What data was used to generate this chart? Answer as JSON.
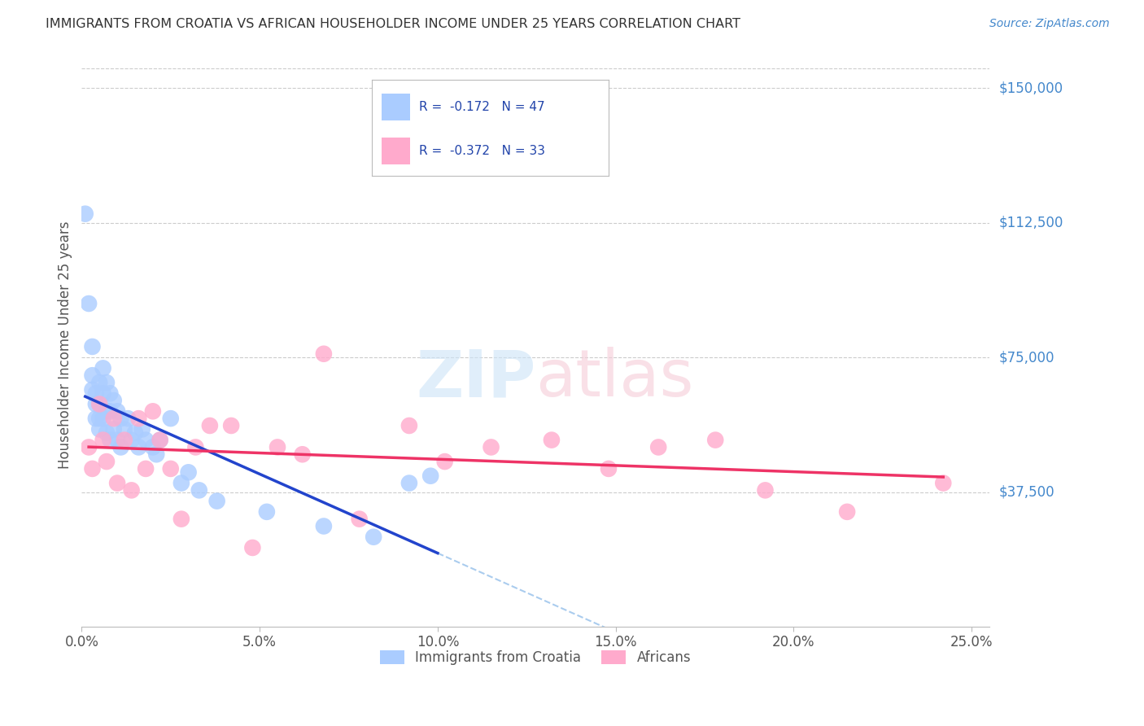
{
  "title": "IMMIGRANTS FROM CROATIA VS AFRICAN HOUSEHOLDER INCOME UNDER 25 YEARS CORRELATION CHART",
  "source": "Source: ZipAtlas.com",
  "ylabel": "Householder Income Under 25 years",
  "xlabel_ticks": [
    "0.0%",
    "5.0%",
    "10.0%",
    "15.0%",
    "20.0%",
    "25.0%"
  ],
  "xlabel_vals": [
    0.0,
    0.05,
    0.1,
    0.15,
    0.2,
    0.25
  ],
  "ylabel_ticks": [
    "$37,500",
    "$75,000",
    "$112,500",
    "$150,000"
  ],
  "ylabel_vals": [
    37500,
    75000,
    112500,
    150000
  ],
  "xlim": [
    0.0,
    0.255
  ],
  "ylim": [
    0,
    157000
  ],
  "croatia_R": "-0.172",
  "croatia_N": "47",
  "african_R": "-0.372",
  "african_N": "33",
  "background_color": "#ffffff",
  "grid_color": "#cccccc",
  "title_color": "#333333",
  "source_color": "#4488cc",
  "ylabel_color": "#555555",
  "yaxis_tick_color": "#4488cc",
  "legend_text_color": "#2244aa",
  "croatia_color": "#aaccff",
  "african_color": "#ffaacc",
  "croatia_line_color": "#2244cc",
  "african_line_color": "#ee3366",
  "dashed_line_color": "#aaccee",
  "croatia_x": [
    0.001,
    0.002,
    0.003,
    0.003,
    0.003,
    0.004,
    0.004,
    0.004,
    0.005,
    0.005,
    0.005,
    0.005,
    0.006,
    0.006,
    0.006,
    0.007,
    0.007,
    0.007,
    0.008,
    0.008,
    0.008,
    0.009,
    0.009,
    0.01,
    0.01,
    0.011,
    0.011,
    0.012,
    0.013,
    0.014,
    0.015,
    0.016,
    0.017,
    0.018,
    0.02,
    0.021,
    0.022,
    0.025,
    0.028,
    0.03,
    0.033,
    0.038,
    0.052,
    0.068,
    0.082,
    0.092,
    0.098
  ],
  "croatia_y": [
    115000,
    90000,
    78000,
    70000,
    66000,
    65000,
    62000,
    58000,
    68000,
    62000,
    58000,
    55000,
    72000,
    65000,
    58000,
    68000,
    60000,
    54000,
    65000,
    60000,
    52000,
    63000,
    55000,
    60000,
    52000,
    58000,
    50000,
    55000,
    58000,
    52000,
    54000,
    50000,
    55000,
    52000,
    50000,
    48000,
    52000,
    58000,
    40000,
    43000,
    38000,
    35000,
    32000,
    28000,
    25000,
    40000,
    42000
  ],
  "african_x": [
    0.002,
    0.003,
    0.005,
    0.006,
    0.007,
    0.009,
    0.01,
    0.012,
    0.014,
    0.016,
    0.018,
    0.02,
    0.022,
    0.025,
    0.028,
    0.032,
    0.036,
    0.042,
    0.048,
    0.055,
    0.062,
    0.068,
    0.078,
    0.092,
    0.102,
    0.115,
    0.132,
    0.148,
    0.162,
    0.178,
    0.192,
    0.215,
    0.242
  ],
  "african_y": [
    50000,
    44000,
    62000,
    52000,
    46000,
    58000,
    40000,
    52000,
    38000,
    58000,
    44000,
    60000,
    52000,
    44000,
    30000,
    50000,
    56000,
    56000,
    22000,
    50000,
    48000,
    76000,
    30000,
    56000,
    46000,
    50000,
    52000,
    44000,
    50000,
    52000,
    38000,
    32000,
    40000
  ]
}
